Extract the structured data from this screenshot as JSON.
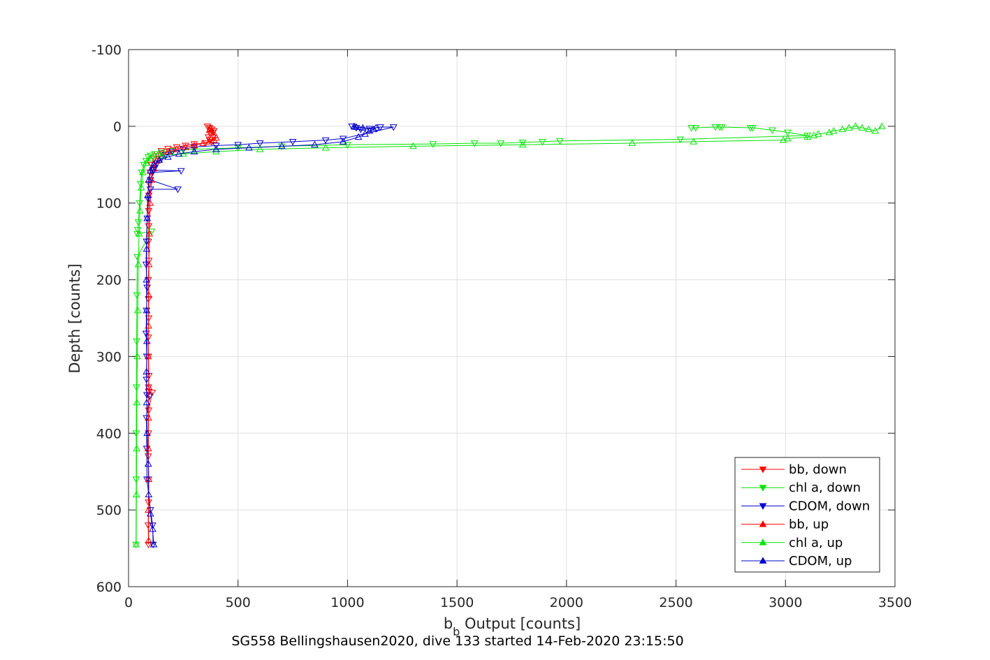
{
  "chart_data": {
    "type": "line",
    "xlabel_main": "b",
    "xlabel_sub": "b",
    "xlabel_rest": " Output [counts]",
    "ylabel": "Depth [counts]",
    "caption": "SG558 Bellingshausen2020, dive 133 started 14-Feb-2020 23:15:50",
    "xlim": [
      0,
      3500
    ],
    "ylim": [
      -100,
      600
    ],
    "y_reversed": true,
    "grid": true,
    "legend_position": "bottom-right",
    "x_ticks": [
      "0",
      "500",
      "1000",
      "1500",
      "2000",
      "2500",
      "3000",
      "3500"
    ],
    "y_ticks": [
      "-100",
      "0",
      "100",
      "200",
      "300",
      "400",
      "500",
      "600"
    ],
    "series": [
      {
        "name": "bb, down",
        "color": "#ff0000",
        "marker": "triangle-down",
        "x": [
          360,
          370,
          380,
          390,
          385,
          375,
          365,
          370,
          380,
          350,
          300,
          260,
          220,
          180,
          150,
          130,
          115,
          105,
          98,
          95,
          93,
          92,
          92,
          91,
          93,
          90,
          91,
          92,
          90,
          91,
          93,
          91,
          92,
          108,
          92,
          91,
          90,
          92,
          91,
          90,
          91
        ],
        "y": [
          0,
          2,
          4,
          6,
          8,
          10,
          14,
          18,
          20,
          22,
          23,
          25,
          27,
          29,
          32,
          36,
          42,
          50,
          60,
          75,
          90,
          110,
          130,
          150,
          175,
          200,
          225,
          250,
          275,
          300,
          325,
          340,
          346,
          347,
          370,
          400,
          430,
          460,
          490,
          520,
          545
        ]
      },
      {
        "name": "chl a, down",
        "color": "#00e400",
        "marker": "triangle-down",
        "x": [
          2570,
          2590,
          2680,
          2700,
          2710,
          2840,
          2850,
          2940,
          3010,
          3100,
          2520,
          1970,
          1890,
          1800,
          1700,
          1580,
          1390,
          1000,
          700,
          500,
          300,
          200,
          150,
          120,
          100,
          90,
          80,
          70,
          60,
          55,
          50,
          45,
          42,
          40,
          105,
          40,
          38,
          37,
          36,
          35,
          35,
          34
        ],
        "y": [
          2,
          2,
          1,
          1,
          1,
          2,
          2,
          5,
          8,
          12,
          17,
          19,
          20,
          21,
          22,
          22,
          23,
          24,
          26,
          28,
          30,
          32,
          34,
          36,
          38,
          40,
          45,
          50,
          60,
          75,
          100,
          125,
          135,
          140,
          137,
          170,
          220,
          280,
          340,
          400,
          460,
          545
        ]
      },
      {
        "name": "CDOM, down",
        "color": "#0000cc",
        "marker": "triangle-down",
        "x": [
          1020,
          1040,
          1060,
          1100,
          1150,
          1210,
          980,
          900,
          750,
          600,
          500,
          400,
          300,
          250,
          200,
          170,
          150,
          130,
          120,
          110,
          240,
          110,
          100,
          225,
          100,
          90,
          85,
          82,
          80,
          85,
          82,
          80,
          83,
          82,
          84,
          95,
          82,
          83,
          84,
          100,
          110,
          112
        ],
        "y": [
          0,
          2,
          4,
          3,
          1,
          1,
          16,
          18,
          20,
          22,
          24,
          25,
          27,
          30,
          33,
          37,
          42,
          48,
          54,
          57,
          58,
          60,
          70,
          82,
          82,
          95,
          120,
          150,
          180,
          210,
          240,
          270,
          300,
          330,
          350,
          352,
          380,
          420,
          460,
          500,
          520,
          545
        ]
      },
      {
        "name": "bb, up",
        "color": "#ff0000",
        "marker": "triangle-up",
        "x": [
          92,
          91,
          92,
          90,
          91,
          92,
          90,
          91,
          92,
          93,
          95,
          98,
          105,
          115,
          130,
          150,
          180,
          220,
          260,
          300,
          340,
          370,
          390,
          400,
          395,
          380,
          370,
          375
        ],
        "y": [
          540,
          500,
          460,
          420,
          380,
          340,
          300,
          260,
          220,
          180,
          140,
          100,
          70,
          55,
          45,
          38,
          33,
          30,
          27,
          25,
          22,
          20,
          18,
          15,
          12,
          8,
          5,
          3
        ]
      },
      {
        "name": "chl a, up",
        "color": "#00e400",
        "marker": "triangle-up",
        "x": [
          35,
          36,
          37,
          38,
          40,
          42,
          45,
          48,
          52,
          58,
          65,
          80,
          100,
          150,
          250,
          400,
          600,
          900,
          1300,
          1800,
          2300,
          2580,
          2990,
          3010,
          3100,
          3130,
          3150,
          3200,
          3220,
          3260,
          3290,
          3320,
          3350,
          3380,
          3410,
          3440
        ],
        "y": [
          545,
          480,
          420,
          360,
          300,
          240,
          180,
          140,
          110,
          80,
          60,
          48,
          42,
          38,
          36,
          33,
          30,
          28,
          26,
          24,
          22,
          20,
          18,
          16,
          14,
          12,
          10,
          8,
          6,
          4,
          2,
          0,
          2,
          4,
          6,
          0
        ]
      },
      {
        "name": "CDOM, up",
        "color": "#0000cc",
        "marker": "triangle-up",
        "x": [
          115,
          110,
          100,
          92,
          90,
          85,
          83,
          82,
          84,
          83,
          82,
          83,
          85,
          88,
          92,
          100,
          115,
          140,
          180,
          230,
          300,
          400,
          550,
          700,
          850,
          980,
          1050,
          1080,
          1100,
          1120,
          1130,
          1070,
          1040,
          1030
        ],
        "y": [
          545,
          525,
          505,
          480,
          440,
          400,
          360,
          320,
          280,
          240,
          200,
          160,
          120,
          90,
          70,
          58,
          50,
          44,
          40,
          36,
          33,
          30,
          28,
          26,
          24,
          20,
          14,
          10,
          6,
          4,
          2,
          2,
          1,
          0
        ]
      }
    ]
  }
}
